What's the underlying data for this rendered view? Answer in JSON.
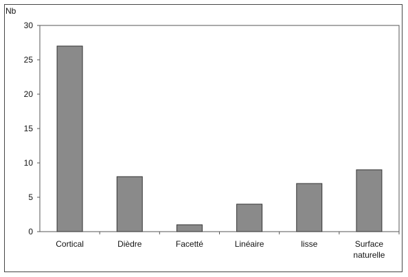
{
  "chart_data": {
    "type": "bar",
    "title": "",
    "xlabel": "",
    "ylabel": "Nb",
    "categories": [
      [
        "Cortical"
      ],
      [
        "Dièdre"
      ],
      [
        "Facetté"
      ],
      [
        "Linéaire"
      ],
      [
        "lisse"
      ],
      [
        "Surface",
        "naturelle"
      ]
    ],
    "values": [
      27,
      8,
      1,
      4,
      7,
      9
    ],
    "ylim": [
      0,
      30
    ],
    "yticks": [
      0,
      5,
      10,
      15,
      20,
      25,
      30
    ],
    "grid": false,
    "legend": "none",
    "colors": {
      "bar_fill": "#8a8a8a",
      "bar_stroke": "#333333",
      "axis": "#555555"
    }
  }
}
